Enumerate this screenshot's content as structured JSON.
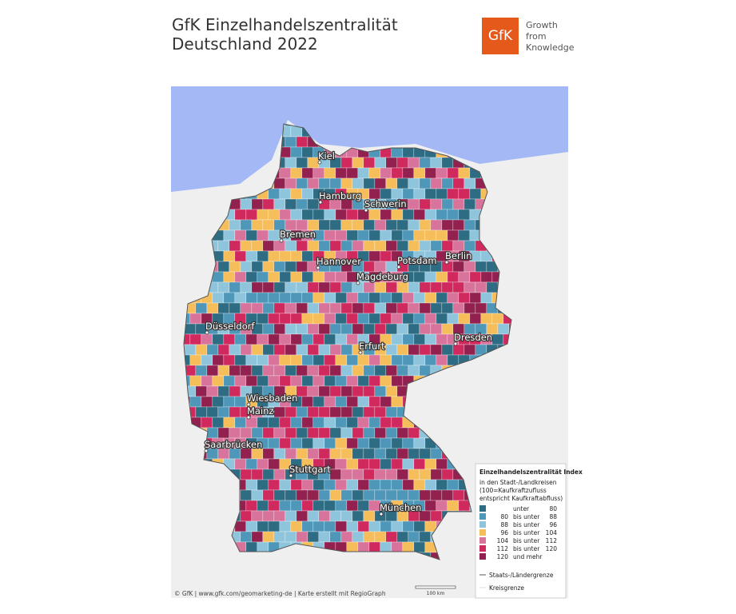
{
  "header": {
    "title_lines": [
      "GfK Einzelhandelszentralität",
      "Deutschland 2022"
    ],
    "logo": {
      "mark": "GfK",
      "tagline": [
        "Growth",
        "from",
        "Knowledge"
      ]
    }
  },
  "map": {
    "cities": [
      "Kiel",
      "Hamburg",
      "Schwerin",
      "Bremen",
      "Hannover",
      "Potsdam",
      "Berlin",
      "Magdeburg",
      "Düsseldorf",
      "Erfurt",
      "Dresden",
      "Wiesbaden",
      "Mainz",
      "Saarbrücken",
      "Stuttgart",
      "München"
    ],
    "scale_bar": "100 km",
    "footer": "© GfK | www.gfk.com/geomarketing-de | Karte erstellt mit RegioGraph"
  },
  "legend": {
    "title": "Einzelhandelszentralität Index",
    "subtitle_lines": [
      "in den Stadt-/Landkreisen",
      "(100=Kaufkraftzufluss",
      "entspricht Kaufkraftabfluss)"
    ],
    "classes": [
      {
        "color": "#2e6c84",
        "op": "unter",
        "to": "80"
      },
      {
        "color": "#4e97b9",
        "from": "80",
        "op": "bis unter",
        "to": "88"
      },
      {
        "color": "#8ec5dc",
        "from": "88",
        "op": "bis unter",
        "to": "96"
      },
      {
        "color": "#f6bd5b",
        "from": "96",
        "op": "bis unter",
        "to": "104"
      },
      {
        "color": "#d8739b",
        "from": "104",
        "op": "bis unter",
        "to": "112"
      },
      {
        "color": "#d0295e",
        "from": "112",
        "op": "bis unter",
        "to": "120"
      },
      {
        "color": "#93214f",
        "from": "120",
        "op": "und mehr"
      }
    ],
    "borders": [
      "Staats-/Ländergrenze",
      "Kreisgrenze"
    ]
  }
}
